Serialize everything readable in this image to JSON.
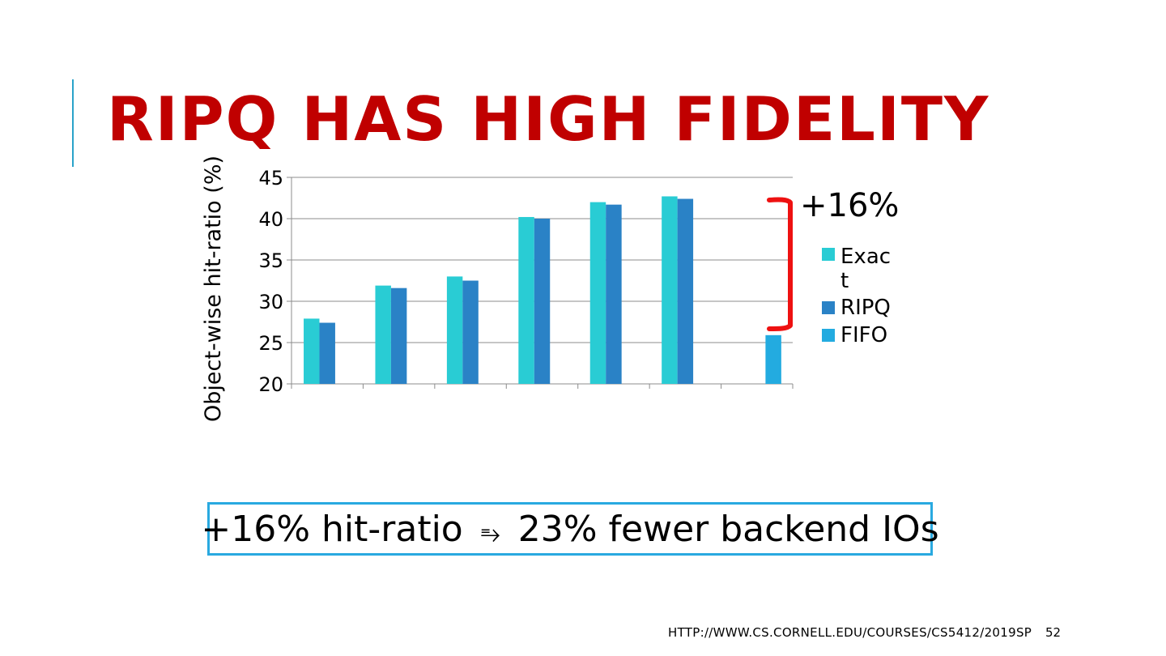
{
  "slide": {
    "title": "RIPQ HAS HIGH FIDELITY",
    "callout": {
      "left": "+16% hit-ratio",
      "arrow": "⥱",
      "right": "23% fewer backend IOs"
    },
    "footer_url": "HTTP://WWW.CS.CORNELL.EDU/COURSES/CS5412/2019SP",
    "page_number": "52",
    "annotation": "+16%"
  },
  "colors": {
    "title": "#c00000",
    "accent": "#2aa3c9",
    "bracket": "#ee1111",
    "callout_border": "#29a9e0"
  },
  "chart_data": {
    "type": "bar",
    "ylabel": "Object-wise hit-ratio (%)",
    "ylim": [
      20,
      45
    ],
    "yticks": [
      20,
      25,
      30,
      35,
      40,
      45
    ],
    "grid": true,
    "legend_position": "right",
    "categories": [
      "",
      "",
      "",
      "",
      "",
      "",
      ""
    ],
    "series": [
      {
        "name": "Exact",
        "color": "#29ccd4",
        "values": [
          27.9,
          31.9,
          33.0,
          40.2,
          42.0,
          42.7,
          null
        ]
      },
      {
        "name": "RIPQ",
        "color": "#2a82c6",
        "values": [
          27.4,
          31.6,
          32.5,
          40.0,
          41.7,
          42.4,
          null
        ]
      },
      {
        "name": "FIFO",
        "color": "#23abe0",
        "values": [
          null,
          null,
          null,
          null,
          null,
          null,
          25.9
        ]
      }
    ]
  }
}
